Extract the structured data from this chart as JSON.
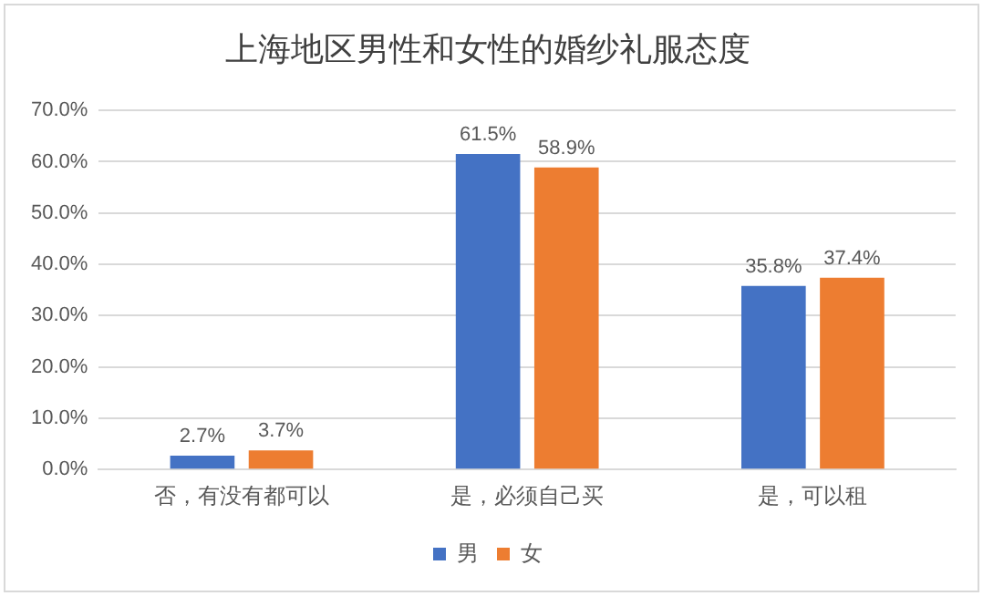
{
  "chart_data": {
    "type": "bar",
    "title": "上海地区男性和女性的婚纱礼服态度",
    "categories": [
      "否，有没有都可以",
      "是，必须自己买",
      "是，可以租"
    ],
    "series": [
      {
        "name": "男",
        "color": "#4472c4",
        "values": [
          2.7,
          61.5,
          35.8
        ],
        "value_labels": [
          "2.7%",
          "61.5%",
          "35.8%"
        ]
      },
      {
        "name": "女",
        "color": "#ed7d31",
        "values": [
          3.7,
          58.9,
          37.4
        ],
        "value_labels": [
          "3.7%",
          "58.9%",
          "37.4%"
        ]
      }
    ],
    "ylim": [
      0,
      70
    ],
    "yticks": [
      {
        "value": 0,
        "label": "0.0%"
      },
      {
        "value": 10,
        "label": "10.0%"
      },
      {
        "value": 20,
        "label": "20.0%"
      },
      {
        "value": 30,
        "label": "30.0%"
      },
      {
        "value": 40,
        "label": "40.0%"
      },
      {
        "value": 50,
        "label": "50.0%"
      },
      {
        "value": 60,
        "label": "60.0%"
      },
      {
        "value": 70,
        "label": "70.0%"
      }
    ],
    "grid": "y",
    "legend": "bottom"
  }
}
